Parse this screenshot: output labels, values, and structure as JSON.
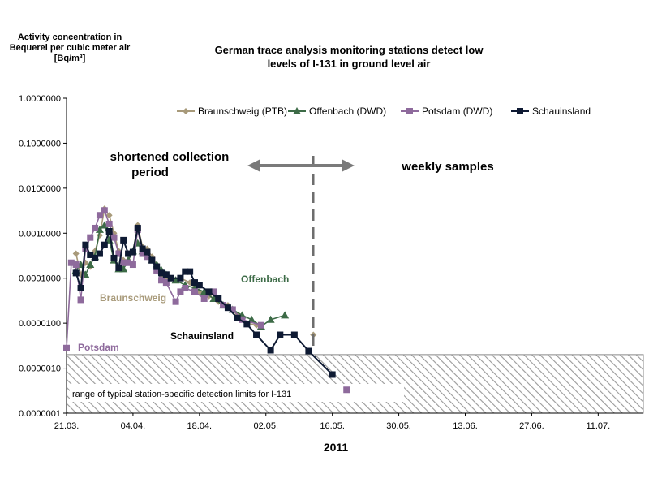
{
  "chart_data": {
    "type": "line",
    "title_lines": [
      "German trace analysis monitoring stations detect low",
      "levels of I-131 in ground level air"
    ],
    "ylabel_lines": [
      "Activity  concentration in",
      "Bequerel per cubic meter air",
      "[Bq/m³]"
    ],
    "xlabel": "2011",
    "y_scale": "log",
    "ylim": [
      1e-07,
      1
    ],
    "y_ticks": [
      "0.0000001",
      "0.0000010",
      "0.0000100",
      "0.0001000",
      "0.0010000",
      "0.0100000",
      "0.1000000",
      "1.0000000"
    ],
    "x_ticks": [
      "21.03.",
      "04.04.",
      "18.04.",
      "02.05.",
      "16.05.",
      "30.05.",
      "13.06.",
      "27.06.",
      "11.07."
    ],
    "xlim": [
      "2011-03-21",
      "2011-07-20"
    ],
    "legend": {
      "position": "top-right"
    },
    "series": [
      {
        "name": "Braunschweig (PTB)",
        "color": "#a89a7a",
        "marker": "diamond",
        "points": [
          [
            "2011-03-23",
            0.00035
          ],
          [
            "2011-03-24",
            0.00012
          ],
          [
            "2011-03-25",
            0.00022
          ],
          [
            "2011-03-26",
            0.00018
          ],
          [
            "2011-03-27",
            0.0004
          ],
          [
            "2011-03-28",
            0.0009
          ],
          [
            "2011-03-29",
            0.0035
          ],
          [
            "2011-03-30",
            0.0025
          ],
          [
            "2011-03-31",
            0.001
          ],
          [
            "2011-04-01",
            0.0004
          ],
          [
            "2011-04-02",
            0.00025
          ],
          [
            "2011-04-03",
            0.00025
          ],
          [
            "2011-04-04",
            0.0004
          ],
          [
            "2011-04-05",
            0.0015
          ],
          [
            "2011-04-06",
            0.0005
          ],
          [
            "2011-04-07",
            0.00045
          ],
          [
            "2011-04-08",
            0.0003
          ],
          [
            "2011-04-09",
            0.0002
          ],
          [
            "2011-04-10",
            0.00012
          ],
          [
            "2011-04-11",
            0.0001
          ],
          [
            "2011-04-12",
            0.0001
          ],
          [
            "2011-04-14",
            0.0001
          ],
          [
            "2011-04-16",
            8e-05
          ],
          [
            "2011-04-18",
            5e-05
          ],
          [
            "2011-04-20",
            4e-05
          ],
          [
            "2011-04-22",
            3e-05
          ],
          [
            "2011-04-24",
            2.5e-05
          ],
          [
            "2011-04-26",
            1.5e-05
          ],
          [
            "2011-04-28",
            1e-05
          ],
          [
            "2011-04-30",
            9e-06
          ],
          [
            "2011-05-12",
            5.5e-06
          ]
        ]
      },
      {
        "name": "Offenbach (DWD)",
        "color": "#3d6b47",
        "marker": "triangle",
        "points": [
          [
            "2011-03-23",
            0.00015
          ],
          [
            "2011-03-24",
            0.0002
          ],
          [
            "2011-03-25",
            0.00012
          ],
          [
            "2011-03-26",
            0.0002
          ],
          [
            "2011-03-27",
            0.0003
          ],
          [
            "2011-03-28",
            0.0012
          ],
          [
            "2011-03-29",
            0.0015
          ],
          [
            "2011-03-30",
            0.0007
          ],
          [
            "2011-03-31",
            0.00025
          ],
          [
            "2011-04-01",
            0.00016
          ],
          [
            "2011-04-02",
            0.00016
          ],
          [
            "2011-04-03",
            0.00025
          ],
          [
            "2011-04-04",
            0.0004
          ],
          [
            "2011-04-05",
            0.0006
          ],
          [
            "2011-04-06",
            0.0004
          ],
          [
            "2011-04-07",
            0.00035
          ],
          [
            "2011-04-08",
            0.00025
          ],
          [
            "2011-04-09",
            0.0002
          ],
          [
            "2011-04-10",
            0.00015
          ],
          [
            "2011-04-11",
            0.00012
          ],
          [
            "2011-04-13",
            9e-05
          ],
          [
            "2011-04-15",
            7e-05
          ],
          [
            "2011-04-17",
            6e-05
          ],
          [
            "2011-04-19",
            5e-05
          ],
          [
            "2011-04-21",
            3.5e-05
          ],
          [
            "2011-04-23",
            2.5e-05
          ],
          [
            "2011-04-25",
            2e-05
          ],
          [
            "2011-04-27",
            1.5e-05
          ],
          [
            "2011-04-29",
            1.2e-05
          ],
          [
            "2011-05-01",
            8.5e-06
          ],
          [
            "2011-05-03",
            1.2e-05
          ],
          [
            "2011-05-06",
            1.5e-05
          ]
        ]
      },
      {
        "name": "Potsdam (DWD)",
        "color": "#8e6a9c",
        "marker": "square",
        "points": [
          [
            "2011-03-21",
            2.8e-06
          ],
          [
            "2011-03-22",
            0.00022
          ],
          [
            "2011-03-23",
            0.0002
          ],
          [
            "2011-03-24",
            3.3e-05
          ],
          [
            "2011-03-25",
            0.00045
          ],
          [
            "2011-03-26",
            0.0008
          ],
          [
            "2011-03-27",
            0.0013
          ],
          [
            "2011-03-28",
            0.0025
          ],
          [
            "2011-03-29",
            0.0032
          ],
          [
            "2011-03-30",
            0.0016
          ],
          [
            "2011-03-31",
            0.0008
          ],
          [
            "2011-04-01",
            0.00035
          ],
          [
            "2011-04-02",
            0.00022
          ],
          [
            "2011-04-03",
            0.00022
          ],
          [
            "2011-04-04",
            0.0002
          ],
          [
            "2011-04-05",
            0.0012
          ],
          [
            "2011-04-06",
            0.00035
          ],
          [
            "2011-04-07",
            0.0003
          ],
          [
            "2011-04-08",
            0.00025
          ],
          [
            "2011-04-09",
            0.00015
          ],
          [
            "2011-04-10",
            9e-05
          ],
          [
            "2011-04-11",
            8e-05
          ],
          [
            "2011-04-13",
            3e-05
          ],
          [
            "2011-04-14",
            5e-05
          ],
          [
            "2011-04-15",
            6e-05
          ],
          [
            "2011-04-17",
            5e-05
          ],
          [
            "2011-04-19",
            3.5e-05
          ],
          [
            "2011-04-21",
            5e-05
          ],
          [
            "2011-04-23",
            2.5e-05
          ],
          [
            "2011-04-25",
            2e-05
          ],
          [
            "2011-04-27",
            1.2e-05
          ],
          [
            "2011-05-01",
            9e-06
          ],
          [
            "2011-05-19",
            3.3e-07
          ]
        ]
      },
      {
        "name": "Schauinsland",
        "color": "#0e1a33",
        "marker": "square",
        "points": [
          [
            "2011-03-23",
            0.00013
          ],
          [
            "2011-03-24",
            6e-05
          ],
          [
            "2011-03-25",
            0.00055
          ],
          [
            "2011-03-26",
            0.00033
          ],
          [
            "2011-03-27",
            0.00028
          ],
          [
            "2011-03-28",
            0.00035
          ],
          [
            "2011-03-29",
            0.00055
          ],
          [
            "2011-03-30",
            0.0011
          ],
          [
            "2011-03-31",
            0.00028
          ],
          [
            "2011-04-01",
            0.00017
          ],
          [
            "2011-04-02",
            0.0007
          ],
          [
            "2011-04-03",
            0.00035
          ],
          [
            "2011-04-04",
            0.00038
          ],
          [
            "2011-04-05",
            0.0013
          ],
          [
            "2011-04-06",
            0.00045
          ],
          [
            "2011-04-07",
            0.00038
          ],
          [
            "2011-04-08",
            0.00025
          ],
          [
            "2011-04-09",
            0.00018
          ],
          [
            "2011-04-10",
            0.00013
          ],
          [
            "2011-04-11",
            0.00012
          ],
          [
            "2011-04-12",
            0.0001
          ],
          [
            "2011-04-14",
            0.0001
          ],
          [
            "2011-04-15",
            0.00014
          ],
          [
            "2011-04-16",
            0.00014
          ],
          [
            "2011-04-17",
            8e-05
          ],
          [
            "2011-04-18",
            7e-05
          ],
          [
            "2011-04-20",
            5e-05
          ],
          [
            "2011-04-22",
            3.5e-05
          ],
          [
            "2011-04-24",
            2.2e-05
          ],
          [
            "2011-04-26",
            1.3e-05
          ],
          [
            "2011-04-28",
            9.5e-06
          ],
          [
            "2011-04-30",
            5.5e-06
          ],
          [
            "2011-05-03",
            2.5e-06
          ],
          [
            "2011-05-05",
            5.5e-06
          ],
          [
            "2011-05-08",
            5.5e-06
          ],
          [
            "2011-05-11",
            2.4e-06
          ],
          [
            "2011-05-16",
            7.2e-07
          ]
        ]
      }
    ],
    "annotations": {
      "braunschweig": "Braunschweig",
      "offenbach": "Offenbach",
      "potsdam": "Potsdam",
      "schauinsland": "Schauinsland",
      "shortened_line1": "shortened collection",
      "shortened_line2": "period",
      "weekly": "weekly samples",
      "detection_range": "range of typical station-specific detection limits for I-131"
    },
    "detection_band": [
      1e-07,
      2e-06
    ],
    "period_split_date": "2011-05-12"
  }
}
